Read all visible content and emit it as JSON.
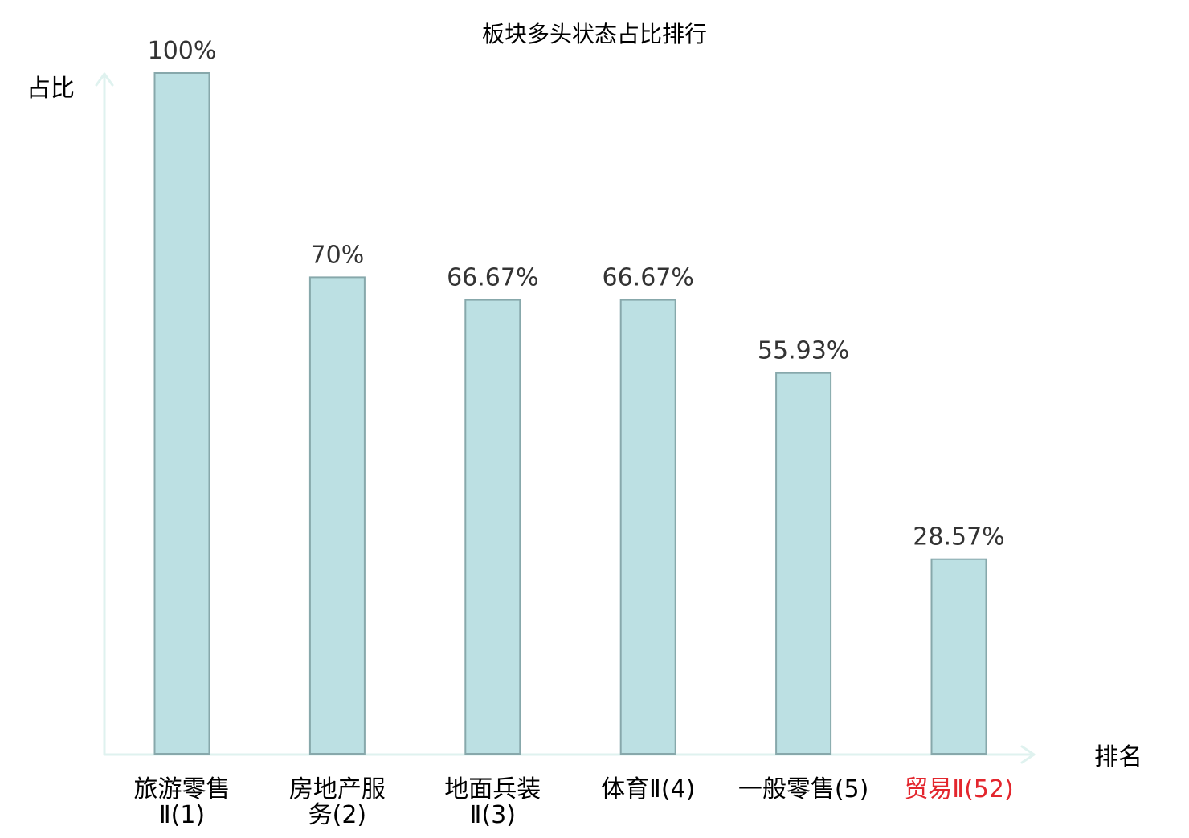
{
  "chart_data": {
    "type": "bar",
    "title": "板块多头状态占比排行",
    "ylabel": "占比",
    "xlabel": "排名",
    "ylim": [
      0,
      100
    ],
    "grid": false,
    "categories": [
      [
        "旅游零售",
        "Ⅱ(1)"
      ],
      [
        "房地产服",
        "务(2)"
      ],
      [
        "地面兵装",
        "Ⅱ(3)"
      ],
      [
        "体育Ⅱ(4)"
      ],
      [
        "一般零售(5)"
      ],
      [
        "贸易Ⅱ(52)"
      ]
    ],
    "values": [
      100,
      70,
      66.67,
      66.67,
      55.93,
      28.57
    ],
    "value_labels": [
      "100%",
      "70%",
      "66.67%",
      "66.67%",
      "55.93%",
      "28.57%"
    ],
    "highlight_index": 5,
    "colors": {
      "bar_fill": "#bce0e3",
      "bar_stroke": "#87a8ab",
      "axis": "#dff2ef",
      "text": "#000000",
      "value_text": "#333333",
      "highlight_text": "#e3262d"
    }
  }
}
